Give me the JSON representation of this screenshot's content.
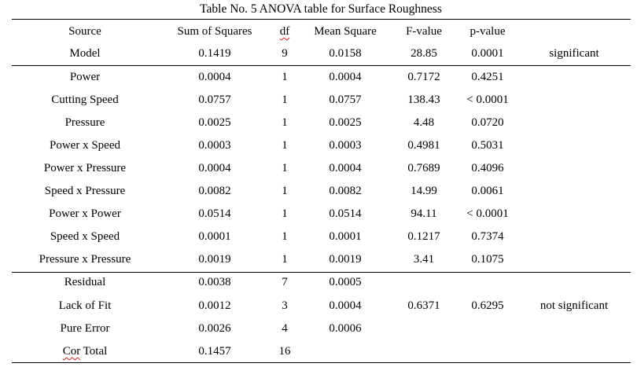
{
  "caption": "Table No. 5 ANOVA table for Surface Roughness",
  "columns": {
    "source": "Source",
    "sum_of_squares": "Sum of Squares",
    "df": "df",
    "mean_square": "Mean Square",
    "f_value": "F-value",
    "p_value": "p-value"
  },
  "rows": [
    {
      "source": "Model",
      "ss": "0.1419",
      "df": "9",
      "ms": "0.0158",
      "f": "28.85",
      "p": "0.0001",
      "note": "significant"
    },
    {
      "source": "Power",
      "ss": "0.0004",
      "df": "1",
      "ms": "0.0004",
      "f": "0.7172",
      "p": "0.4251",
      "note": ""
    },
    {
      "source": "Cutting Speed",
      "ss": "0.0757",
      "df": "1",
      "ms": "0.0757",
      "f": "138.43",
      "p": "< 0.0001",
      "note": ""
    },
    {
      "source": "Pressure",
      "ss": "0.0025",
      "df": "1",
      "ms": "0.0025",
      "f": "4.48",
      "p": "0.0720",
      "note": ""
    },
    {
      "source": "Power x Speed",
      "ss": "0.0003",
      "df": "1",
      "ms": "0.0003",
      "f": "0.4981",
      "p": "0.5031",
      "note": ""
    },
    {
      "source": "Power x Pressure",
      "ss": "0.0004",
      "df": "1",
      "ms": "0.0004",
      "f": "0.7689",
      "p": "0.4096",
      "note": ""
    },
    {
      "source": "Speed x Pressure",
      "ss": "0.0082",
      "df": "1",
      "ms": "0.0082",
      "f": "14.99",
      "p": "0.0061",
      "note": ""
    },
    {
      "source": "Power x Power",
      "ss": "0.0514",
      "df": "1",
      "ms": "0.0514",
      "f": "94.11",
      "p": "< 0.0001",
      "note": ""
    },
    {
      "source": "Speed x Speed",
      "ss": "0.0001",
      "df": "1",
      "ms": "0.0001",
      "f": "0.1217",
      "p": "0.7374",
      "note": ""
    },
    {
      "source": "Pressure x Pressure",
      "ss": "0.0019",
      "df": "1",
      "ms": "0.0019",
      "f": "3.41",
      "p": "0.1075",
      "note": ""
    },
    {
      "source": "Residual",
      "ss": "0.0038",
      "df": "7",
      "ms": "0.0005",
      "f": "",
      "p": "",
      "note": ""
    },
    {
      "source": "Lack of Fit",
      "ss": "0.0012",
      "df": "3",
      "ms": "0.0004",
      "f": "0.6371",
      "p": "0.6295",
      "note": "not significant"
    },
    {
      "source": "Pure Error",
      "ss": "0.0026",
      "df": "4",
      "ms": "0.0006",
      "f": "",
      "p": "",
      "note": ""
    },
    {
      "source": "Cor Total",
      "ss": "0.1457",
      "df": "16",
      "ms": "",
      "f": "",
      "p": "",
      "note": ""
    }
  ],
  "colors": {
    "text": "#000000",
    "rule": "#000000",
    "spellcheck_underline": "#d21b1b",
    "background": "#ffffff"
  }
}
